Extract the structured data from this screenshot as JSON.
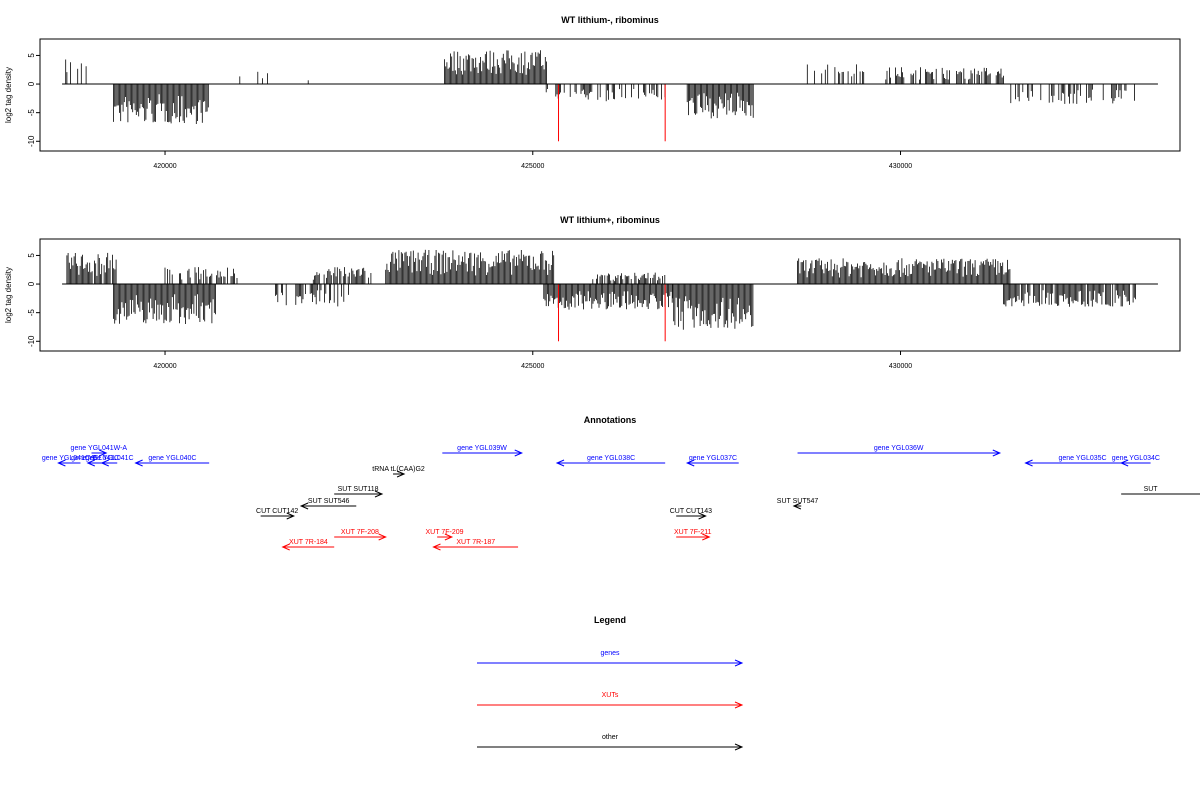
{
  "colors": {
    "gene": "#0000ff",
    "xut": "#ff0000",
    "other": "#000000",
    "highlight": "#ff0000"
  },
  "chart_data": [
    {
      "type": "bar",
      "title": "WT lithium-, ribominus",
      "ylabel": "log2 tag density",
      "xlim": [
        418300,
        433800
      ],
      "ylim": [
        -11,
        7
      ],
      "x_ticks": [
        420000,
        425000,
        430000
      ],
      "x_tick_labels": [
        "420000",
        "425000",
        "430000"
      ],
      "y_ticks": [
        5,
        0,
        -5,
        -10
      ],
      "y_tick_labels": [
        "5",
        "0",
        "-5",
        "-10"
      ],
      "baseline_range": [
        418600,
        433500
      ],
      "segments": [
        {
          "from": 418650,
          "to": 419000,
          "sign": 1,
          "peak": 4.5,
          "density": 0.45
        },
        {
          "from": 419300,
          "to": 420600,
          "sign": -1,
          "peak": 7,
          "density": 1
        },
        {
          "from": 421000,
          "to": 422700,
          "sign": 1,
          "peak": 2.5,
          "density": 0.05
        },
        {
          "from": 423800,
          "to": 425200,
          "sign": 1,
          "peak": 6,
          "density": 1
        },
        {
          "from": 425150,
          "to": 426800,
          "sign": -1,
          "peak": 3,
          "density": 0.55
        },
        {
          "from": 427100,
          "to": 428000,
          "sign": -1,
          "peak": 6,
          "density": 1
        },
        {
          "from": 428700,
          "to": 429500,
          "sign": 1,
          "peak": 3.5,
          "density": 0.35
        },
        {
          "from": 429800,
          "to": 431400,
          "sign": 1,
          "peak": 3,
          "density": 0.65
        },
        {
          "from": 431500,
          "to": 433200,
          "sign": -1,
          "peak": 3.5,
          "density": 0.5
        }
      ],
      "highlights": [
        {
          "x": 425350,
          "value": -10
        },
        {
          "x": 426800,
          "value": -10
        }
      ]
    },
    {
      "type": "bar",
      "title": "WT lithium+, ribominus",
      "ylabel": "log2 tag density",
      "xlim": [
        418300,
        433800
      ],
      "ylim": [
        -11,
        7
      ],
      "x_ticks": [
        420000,
        425000,
        430000
      ],
      "x_tick_labels": [
        "420000",
        "425000",
        "430000"
      ],
      "y_ticks": [
        5,
        0,
        -5,
        -10
      ],
      "y_tick_labels": [
        "5",
        "0",
        "-5",
        "-10"
      ],
      "baseline_range": [
        418600,
        433500
      ],
      "segments": [
        {
          "from": 418650,
          "to": 419350,
          "sign": 1,
          "peak": 5.5,
          "density": 0.9
        },
        {
          "from": 419300,
          "to": 420700,
          "sign": -1,
          "peak": 7,
          "density": 1
        },
        {
          "from": 420000,
          "to": 421000,
          "sign": 1,
          "peak": 3,
          "density": 0.6
        },
        {
          "from": 421500,
          "to": 422500,
          "sign": -1,
          "peak": 4,
          "density": 0.6
        },
        {
          "from": 422000,
          "to": 422800,
          "sign": 1,
          "peak": 3,
          "density": 0.8
        },
        {
          "from": 423000,
          "to": 425300,
          "sign": 1,
          "peak": 6,
          "density": 1
        },
        {
          "from": 425150,
          "to": 426900,
          "sign": -1,
          "peak": 4.5,
          "density": 1
        },
        {
          "from": 425800,
          "to": 426800,
          "sign": 1,
          "peak": 2,
          "density": 0.6
        },
        {
          "from": 426900,
          "to": 428000,
          "sign": -1,
          "peak": 8,
          "density": 1
        },
        {
          "from": 428600,
          "to": 431500,
          "sign": 1,
          "peak": 4.5,
          "density": 1
        },
        {
          "from": 431400,
          "to": 433200,
          "sign": -1,
          "peak": 4,
          "density": 0.85
        }
      ],
      "highlights": [
        {
          "x": 425350,
          "value": -10
        },
        {
          "x": 426800,
          "value": -10
        }
      ]
    }
  ],
  "annotations": {
    "title": "Annotations",
    "xlim": [
      418300,
      433800
    ],
    "features": [
      {
        "label": "gene YGL041W-A",
        "type": "gene",
        "start": 419000,
        "end": 419200,
        "strand": "+",
        "row": 1
      },
      {
        "label": "gene YGL041C-B",
        "type": "gene",
        "start": 418550,
        "end": 418850,
        "strand": "-",
        "row": 2
      },
      {
        "label": "gene YGL041C",
        "type": "gene",
        "start": 418950,
        "end": 419150,
        "strand": "-",
        "row": 2
      },
      {
        "label": "gene YGL041C",
        "type": "gene",
        "start": 419140,
        "end": 419350,
        "strand": "-",
        "row": 2
      },
      {
        "label": "gene YGL040C",
        "type": "gene",
        "start": 419600,
        "end": 420600,
        "strand": "-",
        "row": 2
      },
      {
        "label": "gene YGL039W",
        "type": "gene",
        "start": 423770,
        "end": 424850,
        "strand": "+",
        "row": 1
      },
      {
        "label": "gene YGL038C",
        "type": "gene",
        "start": 425330,
        "end": 426800,
        "strand": "-",
        "row": 2
      },
      {
        "label": "gene YGL037C",
        "type": "gene",
        "start": 427100,
        "end": 427800,
        "strand": "-",
        "row": 2
      },
      {
        "label": "gene YGL036W",
        "type": "gene",
        "start": 428600,
        "end": 431350,
        "strand": "+",
        "row": 1
      },
      {
        "label": "gene YGL035C",
        "type": "gene",
        "start": 431700,
        "end": 433250,
        "strand": "-",
        "row": 2
      },
      {
        "label": "gene YGL034C",
        "type": "gene",
        "start": 433000,
        "end": 433400,
        "strand": "-",
        "row": 2
      },
      {
        "label": "tRNA tL(CAA)G2",
        "type": "other",
        "start": 423100,
        "end": 423250,
        "strand": "+",
        "row": 3
      },
      {
        "label": "SUT SUT118",
        "type": "other",
        "start": 422300,
        "end": 422950,
        "strand": "+",
        "row": 4
      },
      {
        "label": "SUT SUT546",
        "type": "other",
        "start": 421850,
        "end": 422600,
        "strand": "-",
        "row": 5
      },
      {
        "label": "CUT CUT142",
        "type": "other",
        "start": 421300,
        "end": 421750,
        "strand": "+",
        "row": 6
      },
      {
        "label": "CUT CUT143",
        "type": "other",
        "start": 426950,
        "end": 427350,
        "strand": "+",
        "row": 6
      },
      {
        "label": "SUT SUT547",
        "type": "other",
        "start": 428550,
        "end": 428650,
        "strand": "-",
        "row": 5
      },
      {
        "label": "SUT",
        "type": "other",
        "start": 433000,
        "end": 433800,
        "strand": "+",
        "row": 4
      },
      {
        "label": "XUT 7F-208",
        "type": "xut",
        "start": 422300,
        "end": 423000,
        "strand": "+",
        "row": 7
      },
      {
        "label": "XUT 7R-184",
        "type": "xut",
        "start": 421600,
        "end": 422300,
        "strand": "-",
        "row": 8
      },
      {
        "label": "XUT 7F-209",
        "type": "xut",
        "start": 423700,
        "end": 423900,
        "strand": "+",
        "row": 7
      },
      {
        "label": "XUT 7R-187",
        "type": "xut",
        "start": 423650,
        "end": 424800,
        "strand": "-",
        "row": 8
      },
      {
        "label": "XUT 7F-211",
        "type": "xut",
        "start": 426950,
        "end": 427400,
        "strand": "+",
        "row": 7
      }
    ]
  },
  "legend": {
    "title": "Legend",
    "items": [
      {
        "label": "genes",
        "type": "gene"
      },
      {
        "label": "XUTs",
        "type": "xut"
      },
      {
        "label": "other",
        "type": "other"
      }
    ]
  }
}
